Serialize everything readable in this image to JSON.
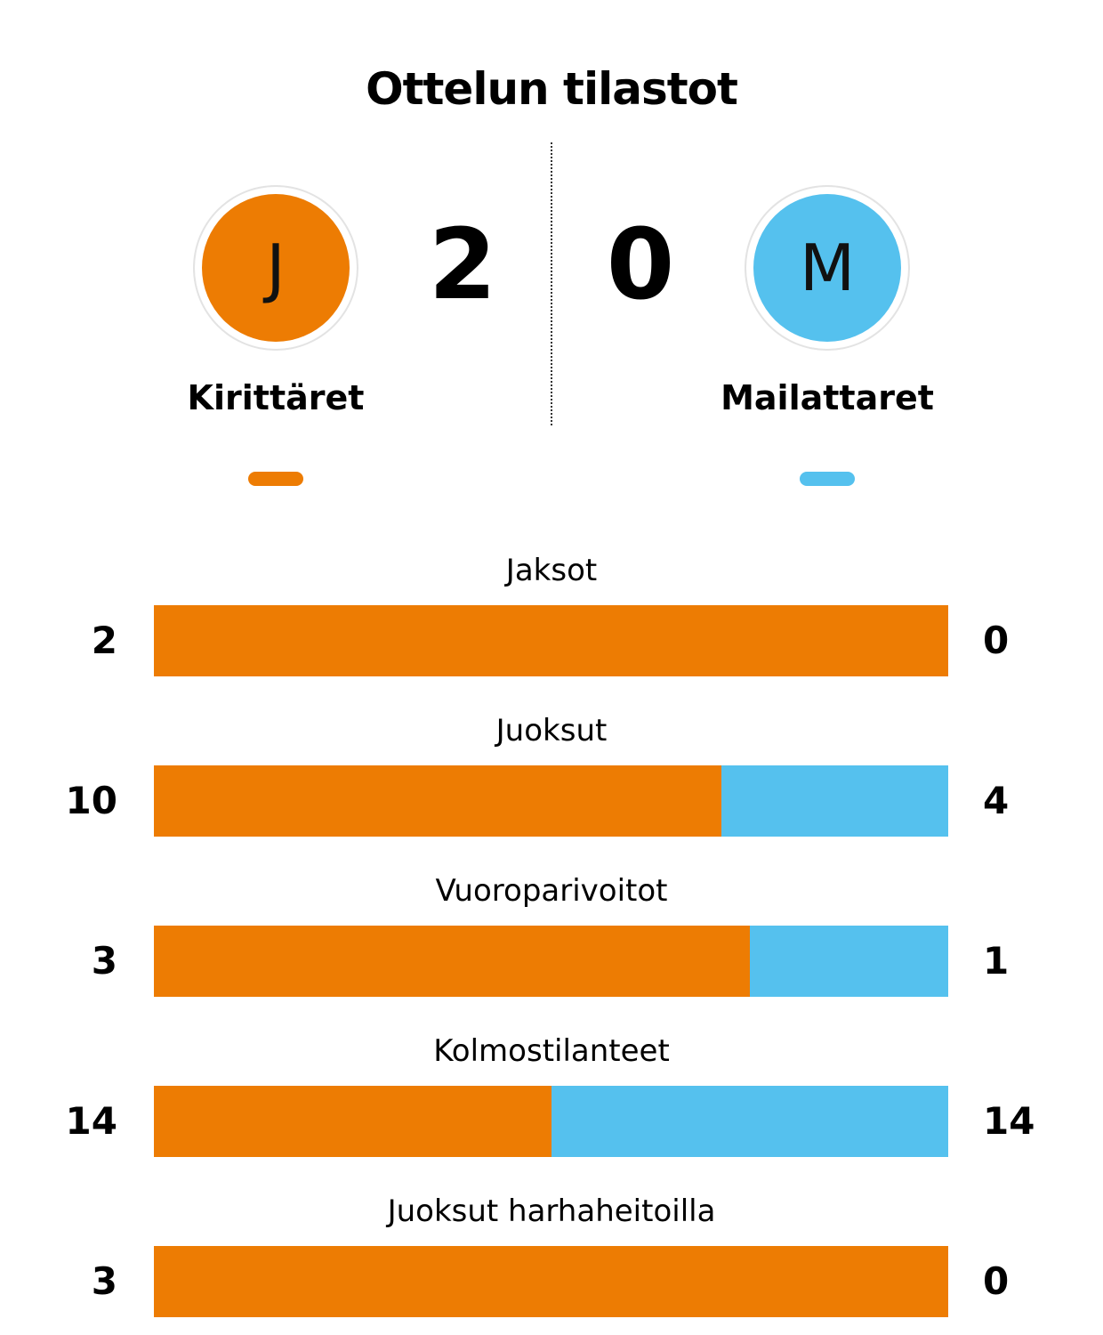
{
  "title": "Ottelun tilastot",
  "colors": {
    "home": "#ED7C03",
    "away": "#55C1EE"
  },
  "home": {
    "initial": "J",
    "name": "Kirittäret",
    "score": "2"
  },
  "away": {
    "initial": "M",
    "name": "Mailattaret",
    "score": "0"
  },
  "stats": [
    {
      "label": "Jaksot",
      "home": 2,
      "away": 0
    },
    {
      "label": "Juoksut",
      "home": 10,
      "away": 4
    },
    {
      "label": "Vuoroparivoitot",
      "home": 3,
      "away": 1
    },
    {
      "label": "Kolmostilanteet",
      "home": 14,
      "away": 14
    },
    {
      "label": "Juoksut harhaheitoilla",
      "home": 3,
      "away": 0
    }
  ]
}
